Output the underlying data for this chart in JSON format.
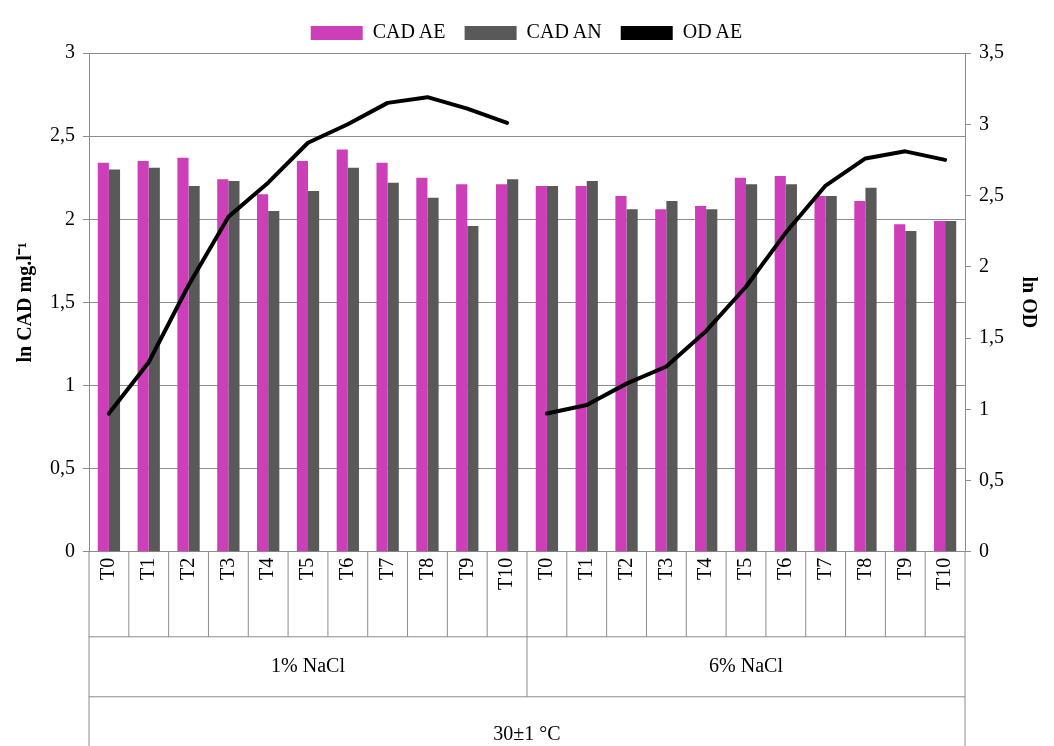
{
  "chart_data": {
    "type": "bar",
    "ylabel": "ln CAD mg.l⁻¹",
    "y2label": "ln OD",
    "categories": [
      "T0",
      "T1",
      "T2",
      "T3",
      "T4",
      "T5",
      "T6",
      "T7",
      "T8",
      "T9",
      "T10",
      "T0",
      "T1",
      "T2",
      "T3",
      "T4",
      "T5",
      "T6",
      "T7",
      "T8",
      "T9",
      "T10"
    ],
    "series": [
      {
        "name": "CAD AE",
        "color": "#cc3fb8",
        "values": [
          2.34,
          2.35,
          2.37,
          2.24,
          2.15,
          2.35,
          2.42,
          2.34,
          2.25,
          2.21,
          2.21,
          2.2,
          2.2,
          2.14,
          2.06,
          2.08,
          2.25,
          2.26,
          2.14,
          2.11,
          1.97,
          1.99
        ]
      },
      {
        "name": "CAD AN",
        "color": "#595959",
        "values": [
          2.3,
          2.31,
          2.2,
          2.23,
          2.05,
          2.17,
          2.31,
          2.22,
          2.13,
          1.96,
          2.24,
          2.2,
          2.23,
          2.06,
          2.11,
          2.06,
          2.21,
          2.21,
          2.14,
          2.19,
          1.93,
          1.99
        ]
      },
      {
        "name": "OD AE",
        "type": "line",
        "axis": "y2",
        "color": "#000000",
        "values": [
          0.97,
          1.33,
          1.87,
          2.35,
          2.59,
          2.87,
          3.0,
          3.15,
          3.19,
          3.11,
          3.01,
          null,
          null,
          null,
          null,
          null,
          null,
          null,
          null,
          null,
          null,
          null
        ]
      },
      {
        "type": "line",
        "axis": "y2",
        "color": "#000000",
        "values": [
          null,
          null,
          null,
          null,
          null,
          null,
          null,
          null,
          null,
          null,
          null,
          0.97,
          1.03,
          1.18,
          1.3,
          1.55,
          1.86,
          2.24,
          2.57,
          2.76,
          2.81,
          2.75
        ]
      }
    ],
    "ylim": [
      0,
      3
    ],
    "yticks": [
      0,
      {
        "value": 0.5,
        "label": "0,5"
      },
      1,
      {
        "value": 1.5,
        "label": "1,5"
      },
      2,
      {
        "value": 2.5,
        "label": "2,5"
      },
      3
    ],
    "y2lim": [
      0,
      3.5
    ],
    "y2ticks": [
      0,
      {
        "value": 0.5,
        "label": "0,5"
      },
      1,
      {
        "value": 1.5,
        "label": "1,5"
      },
      2,
      {
        "value": 2.5,
        "label": "2,5"
      },
      3,
      {
        "value": 3.5,
        "label": "3,5"
      }
    ],
    "annotations": [
      "1% NaCl",
      "6% NaCl",
      "30±1 °C"
    ],
    "grid": "y",
    "legend": "top",
    "marker": "none",
    "line_style": "solid"
  }
}
